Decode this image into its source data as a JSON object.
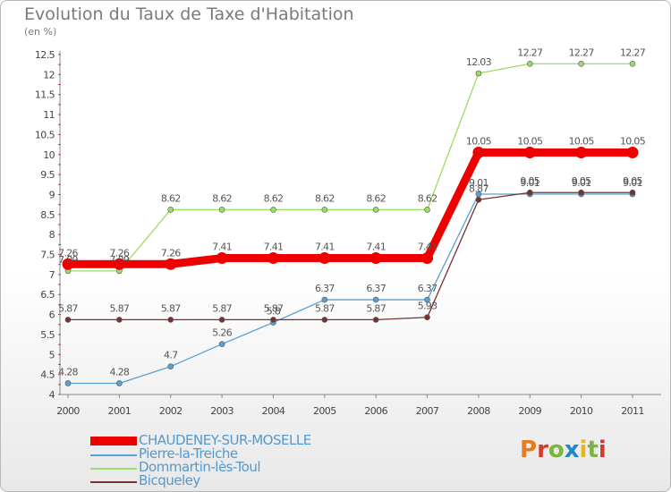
{
  "header": {
    "title": "Evolution du Taux de Taxe d'Habitation",
    "subtitle": "(en %)"
  },
  "logo": {
    "text": "Proxiti",
    "letter_colors": [
      "#e87b1c",
      "#d43b2f",
      "#7bb53a",
      "#1e88c9",
      "#e8b51c",
      "#7bb53a",
      "#d43b2f"
    ]
  },
  "chart_data": {
    "type": "line",
    "x": [
      "2000",
      "2001",
      "2002",
      "2003",
      "2004",
      "2005",
      "2006",
      "2007",
      "2008",
      "2009",
      "2010",
      "2011"
    ],
    "ylim": [
      4,
      12.5
    ],
    "yticks": [
      "4",
      "4.5",
      "5",
      "5.5",
      "6",
      "6.5",
      "7",
      "7.5",
      "8",
      "8.5",
      "9",
      "9.5",
      "10",
      "10.5",
      "11",
      "11.5",
      "12",
      "12.5"
    ],
    "grid": false,
    "legend_position": "bottom-left",
    "series": [
      {
        "name": "CHAUDENEY-SUR-MOSELLE",
        "color": "#ee0000",
        "values": [
          7.26,
          7.26,
          7.26,
          7.41,
          7.41,
          7.41,
          7.41,
          7.41,
          10.05,
          10.05,
          10.05,
          10.05
        ],
        "labels": [
          "7.26",
          "7.26",
          "7.26",
          "7.41",
          "7.41",
          "7.41",
          "7.41",
          "7.41",
          "10.05",
          "10.05",
          "10.05",
          "10.05"
        ]
      },
      {
        "name": "Pierre-la-Treiche",
        "color": "#5aa0d0",
        "values": [
          4.28,
          4.28,
          4.7,
          5.26,
          5.8,
          6.37,
          6.37,
          6.37,
          9.01,
          9.01,
          9.01,
          9.01
        ],
        "labels": [
          "4.28",
          "4.28",
          "4.7",
          "5.26",
          "5.8",
          "6.37",
          "6.37",
          "6.37",
          "9.01",
          "9.01",
          "9.01",
          "9.01"
        ]
      },
      {
        "name": "Dommartin-lès-Toul",
        "color": "#99dd66",
        "values": [
          7.09,
          7.09,
          8.62,
          8.62,
          8.62,
          8.62,
          8.62,
          8.62,
          12.03,
          12.27,
          12.27,
          12.27
        ],
        "labels": [
          "7.09",
          "7.09",
          "8.62",
          "8.62",
          "8.62",
          "8.62",
          "8.62",
          "8.62",
          "12.03",
          "12.27",
          "12.27",
          "12.27"
        ]
      },
      {
        "name": "Bicqueley",
        "color": "#7a3030",
        "values": [
          5.87,
          5.87,
          5.87,
          5.87,
          5.87,
          5.87,
          5.87,
          5.93,
          8.87,
          9.05,
          9.05,
          9.05
        ],
        "labels": [
          "5.87",
          "5.87",
          "5.87",
          "5.87",
          "5.87",
          "5.87",
          "5.87",
          "5.93",
          "8.87",
          "9.05",
          "9.05",
          "9.05"
        ]
      }
    ]
  }
}
